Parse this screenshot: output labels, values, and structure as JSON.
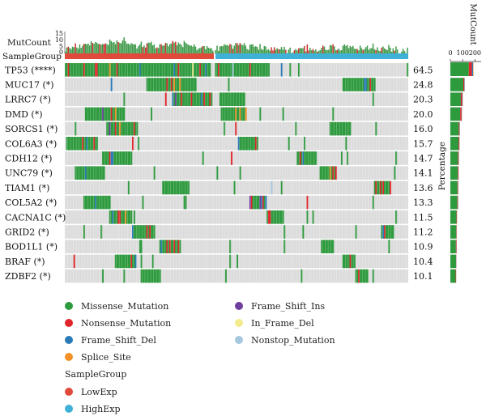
{
  "chart_data": {
    "type": "heatmap",
    "subtype": "oncoplot",
    "top_track": {
      "label": "MutCount",
      "ticks": [
        "15",
        "10",
        "5",
        "0"
      ]
    },
    "group_track": {
      "label": "SampleGroup"
    },
    "right_bar": {
      "label": "MutCount",
      "ticks": [
        "0",
        "100",
        "200"
      ],
      "max": 250
    },
    "percentage_label": "Percentage",
    "groups": [
      {
        "name": "LowExp",
        "color": "#e04a3a"
      },
      {
        "name": "HighExp",
        "color": "#3fb1d6"
      }
    ],
    "genes": [
      {
        "name": "TP53 (****)",
        "percent": "64.5",
        "freq_low": 0.97,
        "freq_high": 0.28,
        "counts": [
          150,
          25,
          10,
          3
        ]
      },
      {
        "name": "MUC17 (*)",
        "percent": "24.8",
        "freq_low": 0.33,
        "freq_high": 0.17,
        "counts": [
          105,
          8,
          3,
          1
        ]
      },
      {
        "name": "LRRC7 (*)",
        "percent": "20.3",
        "freq_low": 0.27,
        "freq_high": 0.13,
        "counts": [
          85,
          10,
          4,
          2
        ]
      },
      {
        "name": "DMD (*)",
        "percent": "20.0",
        "freq_low": 0.27,
        "freq_high": 0.13,
        "counts": [
          80,
          10,
          3,
          2
        ]
      },
      {
        "name": "SORCS1 (*)",
        "percent": "16.0",
        "freq_low": 0.21,
        "freq_high": 0.11,
        "counts": [
          68,
          6,
          3,
          1
        ]
      },
      {
        "name": "COL6A3 (*)",
        "percent": "15.7",
        "freq_low": 0.21,
        "freq_high": 0.1,
        "counts": [
          66,
          6,
          2,
          1
        ]
      },
      {
        "name": "CDH12 (*)",
        "percent": "14.7",
        "freq_low": 0.2,
        "freq_high": 0.1,
        "counts": [
          62,
          5,
          2,
          1
        ]
      },
      {
        "name": "UNC79 (*)",
        "percent": "14.1",
        "freq_low": 0.19,
        "freq_high": 0.09,
        "counts": [
          60,
          5,
          2,
          1
        ]
      },
      {
        "name": "TIAM1 (*)",
        "percent": "13.6",
        "freq_low": 0.18,
        "freq_high": 0.09,
        "counts": [
          58,
          4,
          2,
          1
        ]
      },
      {
        "name": "COL5A2 (*)",
        "percent": "13.3",
        "freq_low": 0.18,
        "freq_high": 0.09,
        "counts": [
          57,
          4,
          2,
          1
        ]
      },
      {
        "name": "CACNA1C (*)",
        "percent": "11.5",
        "freq_low": 0.15,
        "freq_high": 0.08,
        "counts": [
          50,
          3,
          1,
          1
        ]
      },
      {
        "name": "GRID2 (*)",
        "percent": "11.2",
        "freq_low": 0.15,
        "freq_high": 0.07,
        "counts": [
          48,
          3,
          1,
          1
        ]
      },
      {
        "name": "BOD1L1 (*)",
        "percent": "10.9",
        "freq_low": 0.14,
        "freq_high": 0.07,
        "counts": [
          45,
          4,
          2,
          1
        ]
      },
      {
        "name": "BRAF (*)",
        "percent": "10.4",
        "freq_low": 0.14,
        "freq_high": 0.07,
        "counts": [
          46,
          2,
          1,
          0
        ]
      },
      {
        "name": "ZDBF2 (*)",
        "percent": "10.1",
        "freq_low": 0.13,
        "freq_high": 0.07,
        "counts": [
          43,
          3,
          1,
          1
        ]
      }
    ],
    "mutation_types": [
      {
        "name": "Missense_Mutation",
        "color": "#2e9a3e"
      },
      {
        "name": "Nonsense_Mutation",
        "color": "#e0262b"
      },
      {
        "name": "Frame_Shift_Del",
        "color": "#2b7bb9"
      },
      {
        "name": "Splice_Site",
        "color": "#f39026"
      },
      {
        "name": "Frame_Shift_Ins",
        "color": "#6e3e9c"
      },
      {
        "name": "In_Frame_Del",
        "color": "#f3ec8e"
      },
      {
        "name": "Nonstop_Mutation",
        "color": "#a6c8df"
      }
    ],
    "colors": {
      "background": "#dcdcdc",
      "cell_gap": "#ffffff"
    }
  },
  "legend": {
    "types": [
      "Missense_Mutation",
      "Nonsense_Mutation",
      "Frame_Shift_Del",
      "Splice_Site",
      "Frame_Shift_Ins",
      "In_Frame_Del",
      "Nonstop_Mutation"
    ],
    "group_title": "SampleGroup",
    "groups": [
      "LowExp",
      "HighExp"
    ]
  }
}
